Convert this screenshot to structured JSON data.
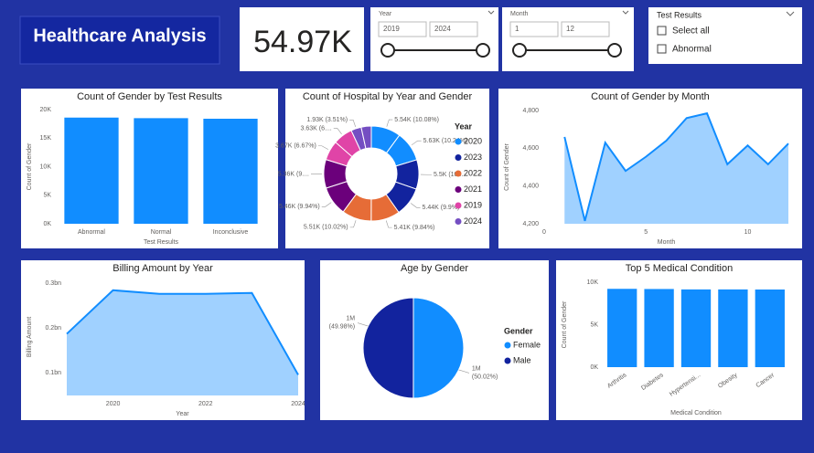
{
  "header": {
    "title": "Healthcare Analysis"
  },
  "kpi": {
    "value": "54.97K"
  },
  "slicers": [
    {
      "title": "Year",
      "from": "2019",
      "to": "2024"
    },
    {
      "title": "Month",
      "from": "1",
      "to": "12"
    }
  ],
  "test_results": {
    "title": "Test Results",
    "options": [
      "Select all",
      "Abnormal"
    ]
  },
  "chart_data": [
    {
      "type": "bar",
      "title": "Count of Gender by Test Results",
      "x_label": "Test Results",
      "y_label": "Count of Gender",
      "categories": [
        "Abnormal",
        "Normal",
        "Inconclusive"
      ],
      "values": [
        18600,
        18500,
        18400
      ],
      "color": "#118dff",
      "ylim": [
        0,
        20000
      ],
      "yticks": [
        {
          "value": 0,
          "label": "0K"
        },
        {
          "value": 5000,
          "label": "5K"
        },
        {
          "value": 10000,
          "label": "10K"
        },
        {
          "value": 15000,
          "label": "15K"
        },
        {
          "value": 20000,
          "label": "20K"
        }
      ]
    },
    {
      "type": "donut",
      "title": "Count of Hospital by Year and Gender",
      "legend_title": "Year",
      "series": [
        {
          "name": "2020",
          "color": "#118dff"
        },
        {
          "name": "2023",
          "color": "#12239e"
        },
        {
          "name": "2022",
          "color": "#e66c37"
        },
        {
          "name": "2021",
          "color": "#6b007b"
        },
        {
          "name": "2019",
          "color": "#e044a7"
        },
        {
          "name": "2024",
          "color": "#744ec2"
        }
      ],
      "values": [
        5540,
        5630,
        5500,
        5440,
        5410,
        5510,
        5460,
        5360,
        3670,
        3630,
        1930,
        1890
      ],
      "value_labels": [
        "5.54K (10.08%)",
        "5.63K (10.24%)",
        "5.5K (10....",
        "5.44K (9.9%)",
        "5.41K (9.84%)",
        "5.51K (10.02%)",
        "5.46K (9.94%)",
        "5.36K (9....",
        "3.67K (6.67%)",
        "3.63K (6....",
        "1.93K (3.51%)",
        null
      ],
      "slice_series": [
        0,
        0,
        1,
        1,
        2,
        2,
        3,
        3,
        4,
        4,
        5,
        5
      ]
    },
    {
      "type": "area",
      "title": "Count of Gender by Month",
      "x_label": "Month",
      "y_label": "Count of Gender",
      "color": "#118dff",
      "x": [
        1,
        2,
        3,
        4,
        5,
        6,
        7,
        8,
        9,
        10,
        11,
        12
      ],
      "values": [
        4660,
        4215,
        4630,
        4480,
        4555,
        4640,
        4760,
        4785,
        4515,
        4615,
        4515,
        4625
      ],
      "xlim": [
        0,
        12
      ],
      "xticks": [
        0,
        5,
        10
      ],
      "ylim": [
        4200,
        4800
      ],
      "yticks": [
        {
          "value": 4200,
          "label": "4,200"
        },
        {
          "value": 4400,
          "label": "4,400"
        },
        {
          "value": 4600,
          "label": "4,600"
        },
        {
          "value": 4800,
          "label": "4,800"
        }
      ]
    },
    {
      "type": "area",
      "title": "Billing Amount by Year",
      "x_label": "Year",
      "y_label": "Billing Amount",
      "color": "#118dff",
      "x": [
        2019,
        2020,
        2021,
        2022,
        2023,
        2024
      ],
      "values": [
        187000000,
        284000000,
        276000000,
        276000000,
        278000000,
        96000000
      ],
      "xlim": [
        2019,
        2024
      ],
      "xticks": [
        2020,
        2022,
        2024
      ],
      "ylim": [
        50000000,
        310000000
      ],
      "yticks": [
        {
          "value": 100000000,
          "label": "0.1bn"
        },
        {
          "value": 200000000,
          "label": "0.2bn"
        },
        {
          "value": 300000000,
          "label": "0.3bn"
        }
      ]
    },
    {
      "type": "pie",
      "title": "Age by Gender",
      "legend_title": "Gender",
      "categories": [
        "Female",
        "Male"
      ],
      "colors": [
        "#118dff",
        "#12239e"
      ],
      "values": [
        50.02,
        49.98
      ],
      "value_labels": [
        "(50.02%)",
        "(49.98%)"
      ],
      "amount_labels": [
        "1M",
        "1M"
      ]
    },
    {
      "type": "bar",
      "title": "Top 5 Medical Condition",
      "x_label": "Medical Condition",
      "y_label": "Count of Gender",
      "rotate_labels": true,
      "categories": [
        "Arthritis",
        "Diabetes",
        "Hypertensi...",
        "Obesity",
        "Cancer"
      ],
      "values": [
        9220,
        9200,
        9150,
        9150,
        9140
      ],
      "color": "#118dff",
      "ylim": [
        0,
        10000
      ],
      "yticks": [
        {
          "value": 0,
          "label": "0K"
        },
        {
          "value": 5000,
          "label": "5K"
        },
        {
          "value": 10000,
          "label": "10K"
        }
      ]
    }
  ]
}
